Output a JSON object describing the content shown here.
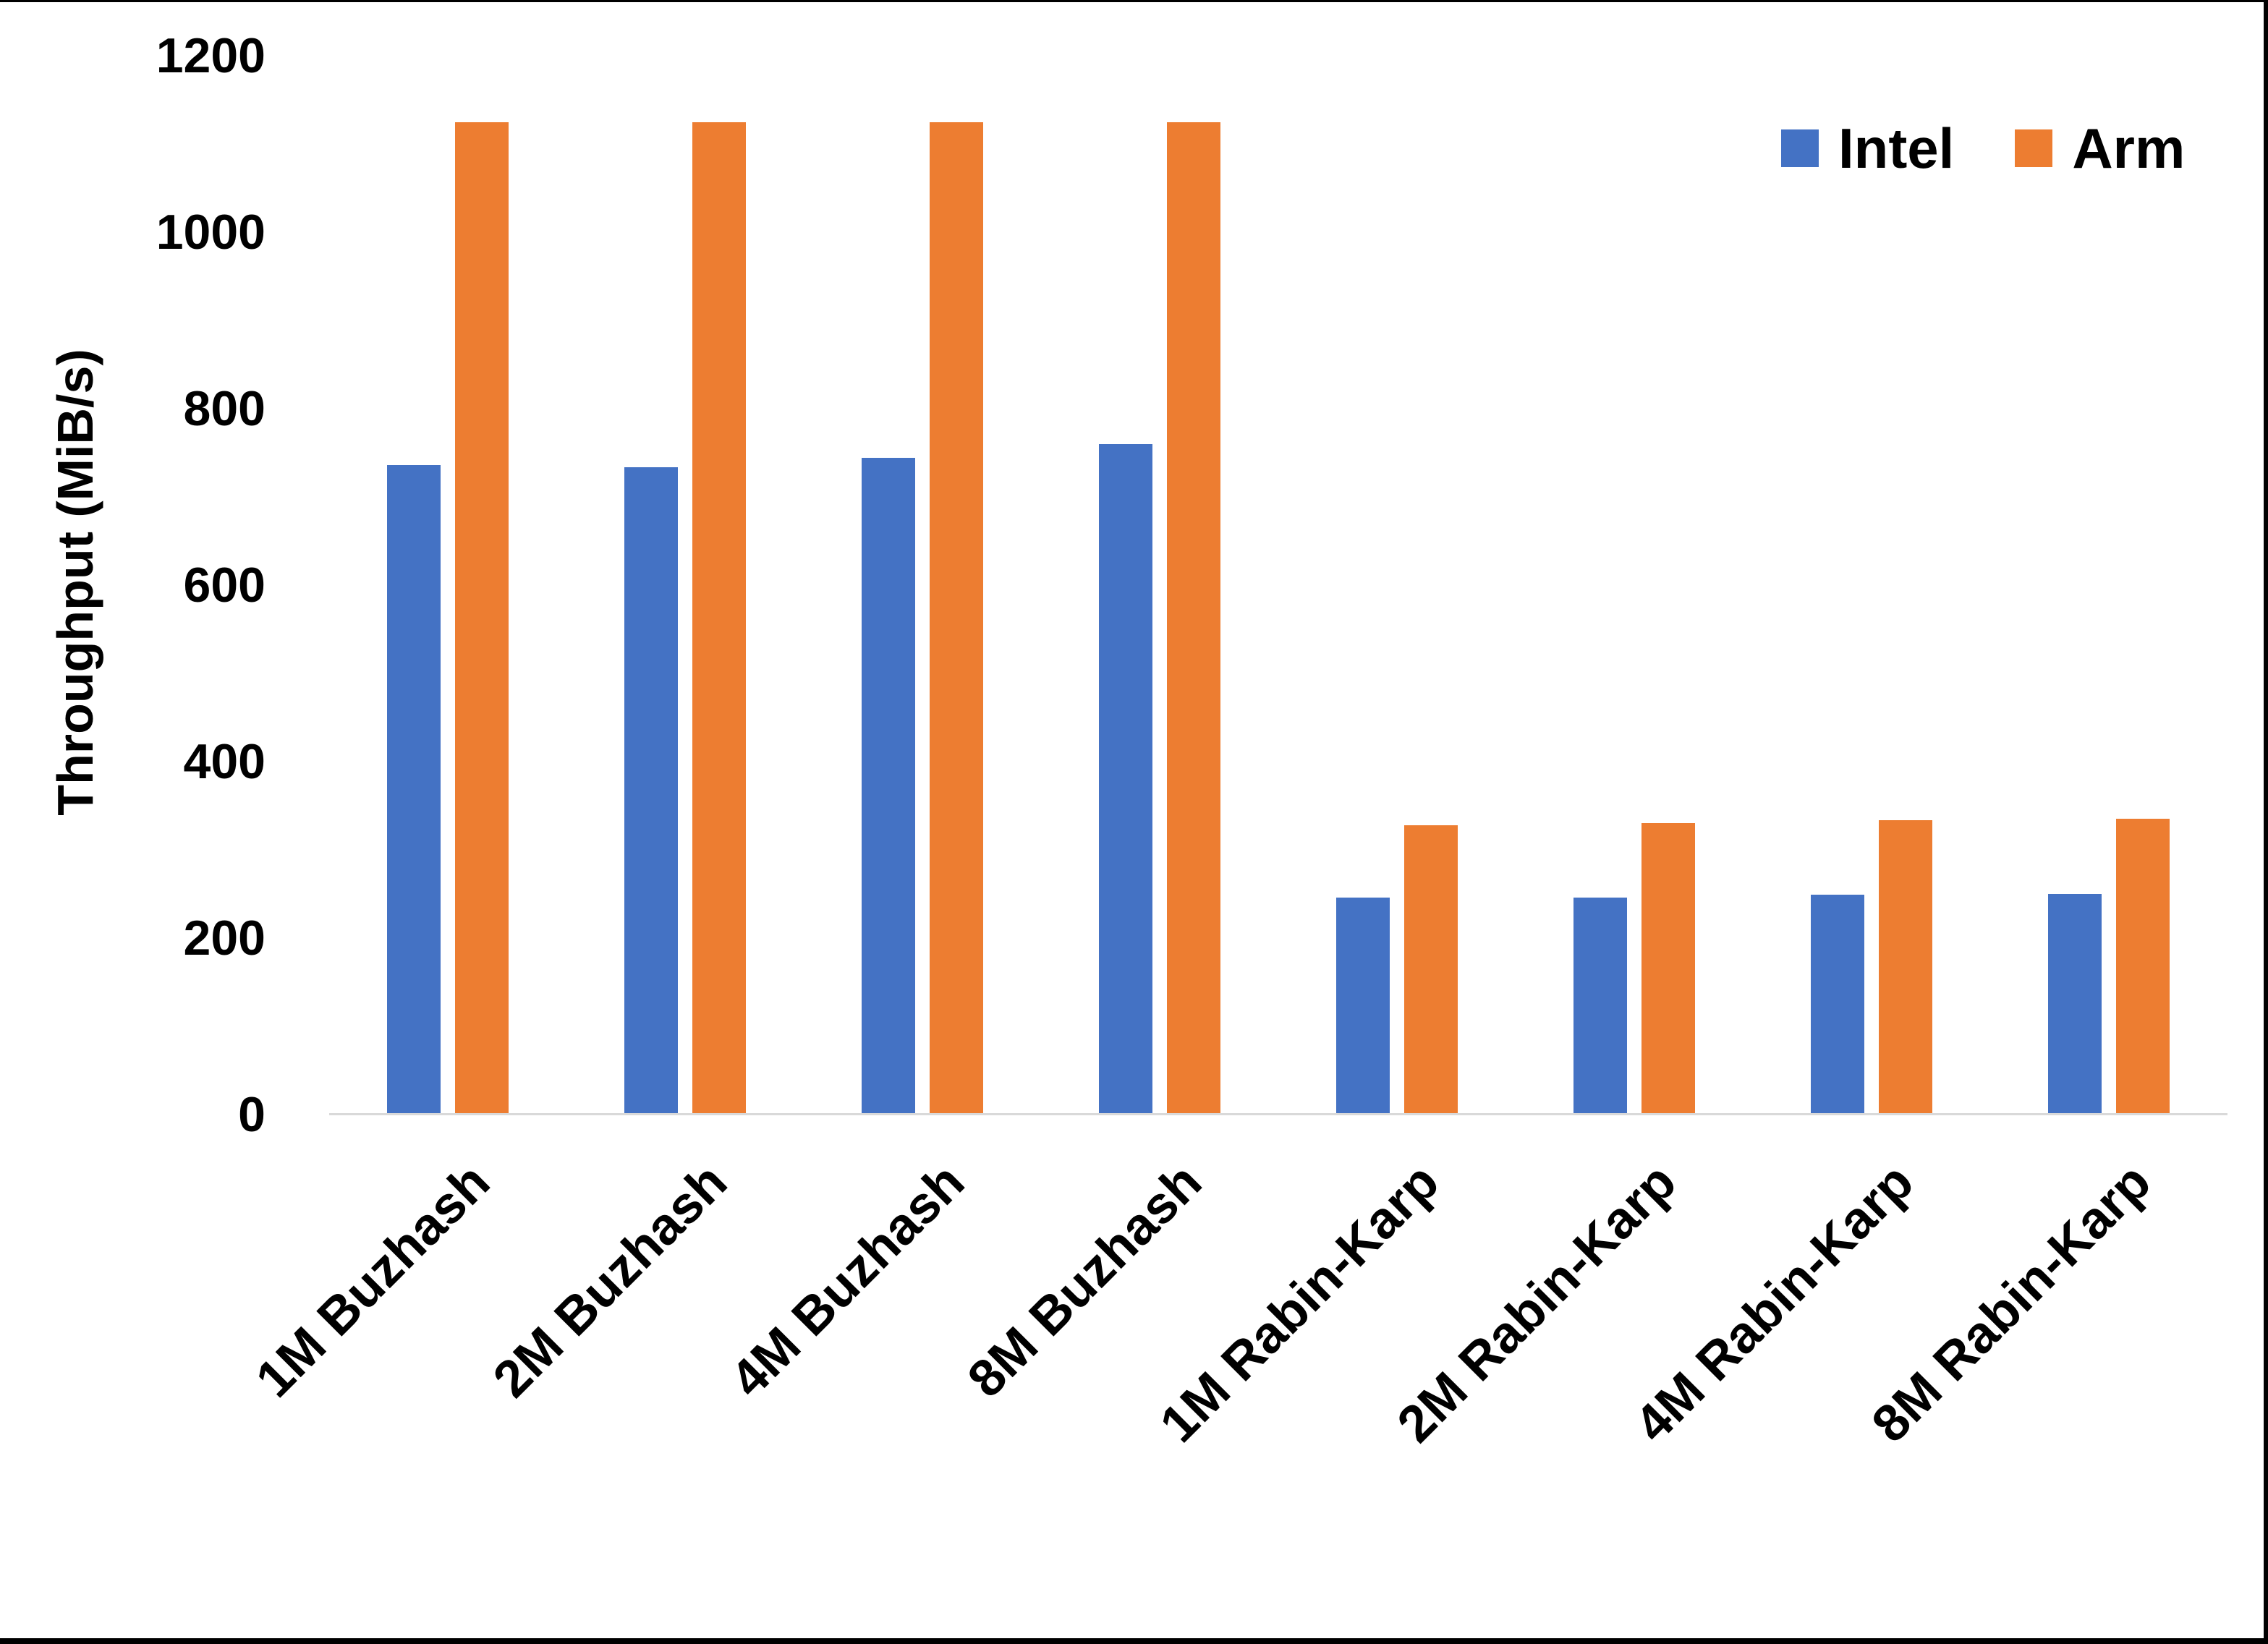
{
  "chart_data": {
    "type": "bar",
    "title": "",
    "categories": [
      "1M Buzhash",
      "2M Buzhash",
      "4M Buzhash",
      "8M Buzhash",
      "1M Rabin-Karp",
      "2M Rabin-Karp",
      "4M Rabin-Karp",
      "8M Rabin-Karp"
    ],
    "series": [
      {
        "name": "Intel",
        "color": "#4472C4",
        "values": [
          736,
          734,
          744,
          760,
          246,
          246,
          249,
          250
        ]
      },
      {
        "name": "Arm",
        "color": "#ED7D31",
        "values": [
          1125,
          1125,
          1125,
          1125,
          328,
          330,
          334,
          335
        ]
      }
    ],
    "xlabel": "",
    "ylabel": "Throughput (MiB/s)",
    "ylim": [
      0,
      1200
    ],
    "yticks": [
      0,
      200,
      400,
      600,
      800,
      1000,
      1200
    ],
    "grid": false,
    "legend_position": "top-right",
    "axis_line_color": "#D9D9D9",
    "background": "#FFFFFF",
    "frame_color": "#000000"
  },
  "legend": {
    "items": [
      {
        "label": "Intel",
        "color": "#4472C4"
      },
      {
        "label": "Arm",
        "color": "#ED7D31"
      }
    ]
  }
}
